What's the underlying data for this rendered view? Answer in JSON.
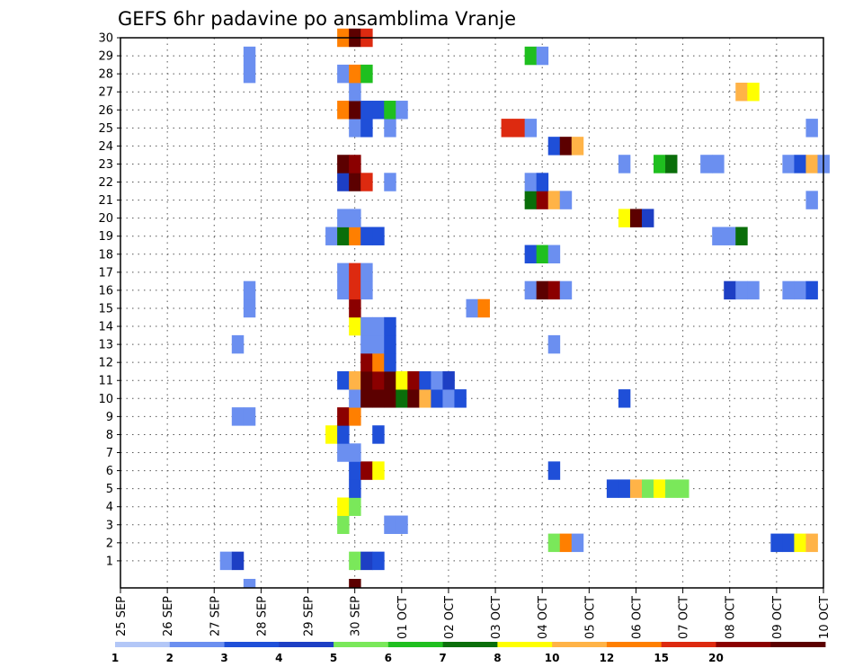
{
  "chart_data": {
    "type": "heatmap",
    "title": "GEFS 6hr padavine po ansamblima Vranje",
    "y_ticks": [
      "1",
      "2",
      "3",
      "4",
      "5",
      "6",
      "7",
      "8",
      "9",
      "10",
      "11",
      "12",
      "13",
      "14",
      "15",
      "16",
      "17",
      "18",
      "19",
      "20",
      "21",
      "22",
      "23",
      "24",
      "25",
      "26",
      "27",
      "28",
      "29",
      "30"
    ],
    "x_ticks": [
      "25 SEP",
      "26 SEP",
      "27 SEP",
      "28 SEP",
      "29 SEP",
      "30 SEP",
      "01 OCT",
      "02 OCT",
      "03 OCT",
      "04 OCT",
      "05 OCT",
      "06 OCT",
      "07 OCT",
      "08 OCT",
      "09 OCT",
      "10 OCT"
    ],
    "x_steps_per_day": 4,
    "grid": true,
    "legend_placement": "bottom",
    "colorbar": {
      "tick_labels": [
        "1",
        "2",
        "3",
        "4",
        "5",
        "6",
        "7",
        "8",
        "10",
        "12",
        "15",
        "20"
      ],
      "colors": [
        "#b3c7f7",
        "#6b8ff0",
        "#1f4fd8",
        "#1d3fc4",
        "#7ae85a",
        "#1fbf1f",
        "#0a6e0a",
        "#ffff00",
        "#ffb347",
        "#ff7f00",
        "#dd2a10",
        "#8b0000",
        "#5c0000"
      ]
    },
    "level_values": [
      1,
      2,
      3,
      4,
      5,
      6,
      7,
      8,
      10,
      12,
      15,
      20,
      25
    ],
    "cells": [
      [
        1,
        9,
        1
      ],
      [
        1,
        10,
        3
      ],
      [
        1,
        20,
        4
      ],
      [
        1,
        21,
        3
      ],
      [
        1,
        22,
        2
      ],
      [
        2,
        37,
        4
      ],
      [
        2,
        38,
        9
      ],
      [
        2,
        39,
        1
      ],
      [
        2,
        56,
        2
      ],
      [
        2,
        57,
        2
      ],
      [
        2,
        58,
        7
      ],
      [
        2,
        59,
        8
      ],
      [
        3,
        19,
        4
      ],
      [
        3,
        23,
        1
      ],
      [
        3,
        24,
        1
      ],
      [
        4,
        19,
        7
      ],
      [
        4,
        20,
        4
      ],
      [
        5,
        20,
        2
      ],
      [
        5,
        42,
        2
      ],
      [
        5,
        43,
        2
      ],
      [
        5,
        44,
        8
      ],
      [
        5,
        45,
        4
      ],
      [
        5,
        46,
        7
      ],
      [
        5,
        47,
        4
      ],
      [
        5,
        48,
        4
      ],
      [
        6,
        20,
        2
      ],
      [
        6,
        21,
        11
      ],
      [
        6,
        22,
        7
      ],
      [
        6,
        37,
        2
      ],
      [
        7,
        19,
        1
      ],
      [
        7,
        20,
        1
      ],
      [
        8,
        18,
        7
      ],
      [
        8,
        19,
        2
      ],
      [
        8,
        22,
        2
      ],
      [
        9,
        10,
        1
      ],
      [
        9,
        11,
        1
      ],
      [
        9,
        19,
        11
      ],
      [
        9,
        20,
        9
      ],
      [
        10,
        20,
        1
      ],
      [
        10,
        21,
        12
      ],
      [
        10,
        22,
        12
      ],
      [
        10,
        23,
        12
      ],
      [
        10,
        24,
        6
      ],
      [
        10,
        25,
        12
      ],
      [
        10,
        26,
        8
      ],
      [
        10,
        27,
        2
      ],
      [
        10,
        28,
        1
      ],
      [
        10,
        29,
        2
      ],
      [
        10,
        43,
        2
      ],
      [
        11,
        19,
        2
      ],
      [
        11,
        20,
        8
      ],
      [
        11,
        21,
        12
      ],
      [
        11,
        22,
        11
      ],
      [
        11,
        23,
        12
      ],
      [
        11,
        24,
        7
      ],
      [
        11,
        25,
        11
      ],
      [
        11,
        26,
        2
      ],
      [
        11,
        27,
        1
      ],
      [
        11,
        28,
        3
      ],
      [
        12,
        21,
        11
      ],
      [
        12,
        22,
        9
      ],
      [
        12,
        23,
        2
      ],
      [
        13,
        10,
        1
      ],
      [
        13,
        21,
        1
      ],
      [
        13,
        22,
        1
      ],
      [
        13,
        23,
        2
      ],
      [
        13,
        37,
        1
      ],
      [
        14,
        20,
        7
      ],
      [
        14,
        21,
        1
      ],
      [
        14,
        22,
        1
      ],
      [
        14,
        23,
        2
      ],
      [
        15,
        11,
        1
      ],
      [
        15,
        20,
        11
      ],
      [
        15,
        30,
        1
      ],
      [
        15,
        31,
        9
      ],
      [
        16,
        11,
        1
      ],
      [
        16,
        19,
        1
      ],
      [
        16,
        20,
        10
      ],
      [
        16,
        21,
        1
      ],
      [
        16,
        35,
        1
      ],
      [
        16,
        36,
        12
      ],
      [
        16,
        37,
        11
      ],
      [
        16,
        38,
        1
      ],
      [
        16,
        52,
        3
      ],
      [
        16,
        53,
        1
      ],
      [
        16,
        54,
        1
      ],
      [
        16,
        57,
        1
      ],
      [
        16,
        58,
        1
      ],
      [
        16,
        59,
        2
      ],
      [
        17,
        19,
        1
      ],
      [
        17,
        20,
        10
      ],
      [
        17,
        21,
        1
      ],
      [
        18,
        35,
        2
      ],
      [
        18,
        36,
        5
      ],
      [
        18,
        37,
        1
      ],
      [
        19,
        18,
        1
      ],
      [
        19,
        19,
        6
      ],
      [
        19,
        20,
        9
      ],
      [
        19,
        21,
        2
      ],
      [
        19,
        22,
        2
      ],
      [
        19,
        51,
        1
      ],
      [
        19,
        52,
        1
      ],
      [
        19,
        53,
        6
      ],
      [
        20,
        19,
        1
      ],
      [
        20,
        20,
        1
      ],
      [
        20,
        43,
        7
      ],
      [
        20,
        44,
        12
      ],
      [
        20,
        45,
        3
      ],
      [
        21,
        35,
        6
      ],
      [
        21,
        36,
        11
      ],
      [
        21,
        37,
        8
      ],
      [
        21,
        38,
        1
      ],
      [
        21,
        59,
        1
      ],
      [
        22,
        19,
        3
      ],
      [
        22,
        20,
        12
      ],
      [
        22,
        21,
        10
      ],
      [
        22,
        23,
        1
      ],
      [
        22,
        35,
        1
      ],
      [
        22,
        36,
        2
      ],
      [
        23,
        19,
        12
      ],
      [
        23,
        20,
        11
      ],
      [
        23,
        43,
        1
      ],
      [
        23,
        46,
        5
      ],
      [
        23,
        47,
        6
      ],
      [
        23,
        50,
        1
      ],
      [
        23,
        51,
        1
      ],
      [
        23,
        57,
        1
      ],
      [
        23,
        58,
        2
      ],
      [
        23,
        59,
        8
      ],
      [
        23,
        60,
        1
      ],
      [
        24,
        37,
        2
      ],
      [
        24,
        38,
        12
      ],
      [
        24,
        39,
        8
      ],
      [
        25,
        20,
        1
      ],
      [
        25,
        21,
        2
      ],
      [
        25,
        23,
        1
      ],
      [
        25,
        33,
        10
      ],
      [
        25,
        34,
        10
      ],
      [
        25,
        35,
        1
      ],
      [
        25,
        59,
        1
      ],
      [
        26,
        19,
        9
      ],
      [
        26,
        20,
        12
      ],
      [
        26,
        21,
        2
      ],
      [
        26,
        22,
        2
      ],
      [
        26,
        23,
        5
      ],
      [
        26,
        24,
        1
      ],
      [
        27,
        20,
        1
      ],
      [
        27,
        53,
        8
      ],
      [
        27,
        54,
        7
      ],
      [
        28,
        11,
        1
      ],
      [
        28,
        19,
        1
      ],
      [
        28,
        20,
        9
      ],
      [
        28,
        21,
        5
      ],
      [
        29,
        11,
        1
      ],
      [
        29,
        35,
        5
      ],
      [
        29,
        36,
        1
      ],
      [
        30,
        19,
        9
      ],
      [
        30,
        20,
        12
      ],
      [
        30,
        21,
        10
      ]
    ],
    "cells_row0": [
      [
        11,
        1
      ],
      [
        20,
        12
      ]
    ]
  }
}
